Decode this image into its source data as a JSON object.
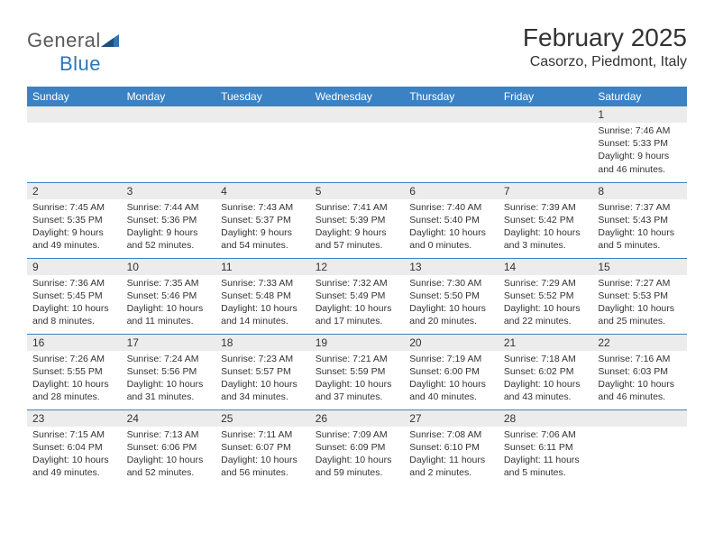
{
  "logo": {
    "part1": "General",
    "part2": "Blue"
  },
  "title": "February 2025",
  "location": "Casorzo, Piedmont, Italy",
  "colors": {
    "header_bg": "#3b82c4",
    "header_text": "#ffffff",
    "daynum_bg": "#ececec",
    "border": "#3b82c4",
    "text": "#333333",
    "logo_gray": "#5a5a5a",
    "logo_blue": "#2e75b6"
  },
  "day_headers": [
    "Sunday",
    "Monday",
    "Tuesday",
    "Wednesday",
    "Thursday",
    "Friday",
    "Saturday"
  ],
  "weeks": [
    [
      {
        "num": "",
        "sunrise": "",
        "sunset": "",
        "daylight": ""
      },
      {
        "num": "",
        "sunrise": "",
        "sunset": "",
        "daylight": ""
      },
      {
        "num": "",
        "sunrise": "",
        "sunset": "",
        "daylight": ""
      },
      {
        "num": "",
        "sunrise": "",
        "sunset": "",
        "daylight": ""
      },
      {
        "num": "",
        "sunrise": "",
        "sunset": "",
        "daylight": ""
      },
      {
        "num": "",
        "sunrise": "",
        "sunset": "",
        "daylight": ""
      },
      {
        "num": "1",
        "sunrise": "Sunrise: 7:46 AM",
        "sunset": "Sunset: 5:33 PM",
        "daylight": "Daylight: 9 hours and 46 minutes."
      }
    ],
    [
      {
        "num": "2",
        "sunrise": "Sunrise: 7:45 AM",
        "sunset": "Sunset: 5:35 PM",
        "daylight": "Daylight: 9 hours and 49 minutes."
      },
      {
        "num": "3",
        "sunrise": "Sunrise: 7:44 AM",
        "sunset": "Sunset: 5:36 PM",
        "daylight": "Daylight: 9 hours and 52 minutes."
      },
      {
        "num": "4",
        "sunrise": "Sunrise: 7:43 AM",
        "sunset": "Sunset: 5:37 PM",
        "daylight": "Daylight: 9 hours and 54 minutes."
      },
      {
        "num": "5",
        "sunrise": "Sunrise: 7:41 AM",
        "sunset": "Sunset: 5:39 PM",
        "daylight": "Daylight: 9 hours and 57 minutes."
      },
      {
        "num": "6",
        "sunrise": "Sunrise: 7:40 AM",
        "sunset": "Sunset: 5:40 PM",
        "daylight": "Daylight: 10 hours and 0 minutes."
      },
      {
        "num": "7",
        "sunrise": "Sunrise: 7:39 AM",
        "sunset": "Sunset: 5:42 PM",
        "daylight": "Daylight: 10 hours and 3 minutes."
      },
      {
        "num": "8",
        "sunrise": "Sunrise: 7:37 AM",
        "sunset": "Sunset: 5:43 PM",
        "daylight": "Daylight: 10 hours and 5 minutes."
      }
    ],
    [
      {
        "num": "9",
        "sunrise": "Sunrise: 7:36 AM",
        "sunset": "Sunset: 5:45 PM",
        "daylight": "Daylight: 10 hours and 8 minutes."
      },
      {
        "num": "10",
        "sunrise": "Sunrise: 7:35 AM",
        "sunset": "Sunset: 5:46 PM",
        "daylight": "Daylight: 10 hours and 11 minutes."
      },
      {
        "num": "11",
        "sunrise": "Sunrise: 7:33 AM",
        "sunset": "Sunset: 5:48 PM",
        "daylight": "Daylight: 10 hours and 14 minutes."
      },
      {
        "num": "12",
        "sunrise": "Sunrise: 7:32 AM",
        "sunset": "Sunset: 5:49 PM",
        "daylight": "Daylight: 10 hours and 17 minutes."
      },
      {
        "num": "13",
        "sunrise": "Sunrise: 7:30 AM",
        "sunset": "Sunset: 5:50 PM",
        "daylight": "Daylight: 10 hours and 20 minutes."
      },
      {
        "num": "14",
        "sunrise": "Sunrise: 7:29 AM",
        "sunset": "Sunset: 5:52 PM",
        "daylight": "Daylight: 10 hours and 22 minutes."
      },
      {
        "num": "15",
        "sunrise": "Sunrise: 7:27 AM",
        "sunset": "Sunset: 5:53 PM",
        "daylight": "Daylight: 10 hours and 25 minutes."
      }
    ],
    [
      {
        "num": "16",
        "sunrise": "Sunrise: 7:26 AM",
        "sunset": "Sunset: 5:55 PM",
        "daylight": "Daylight: 10 hours and 28 minutes."
      },
      {
        "num": "17",
        "sunrise": "Sunrise: 7:24 AM",
        "sunset": "Sunset: 5:56 PM",
        "daylight": "Daylight: 10 hours and 31 minutes."
      },
      {
        "num": "18",
        "sunrise": "Sunrise: 7:23 AM",
        "sunset": "Sunset: 5:57 PM",
        "daylight": "Daylight: 10 hours and 34 minutes."
      },
      {
        "num": "19",
        "sunrise": "Sunrise: 7:21 AM",
        "sunset": "Sunset: 5:59 PM",
        "daylight": "Daylight: 10 hours and 37 minutes."
      },
      {
        "num": "20",
        "sunrise": "Sunrise: 7:19 AM",
        "sunset": "Sunset: 6:00 PM",
        "daylight": "Daylight: 10 hours and 40 minutes."
      },
      {
        "num": "21",
        "sunrise": "Sunrise: 7:18 AM",
        "sunset": "Sunset: 6:02 PM",
        "daylight": "Daylight: 10 hours and 43 minutes."
      },
      {
        "num": "22",
        "sunrise": "Sunrise: 7:16 AM",
        "sunset": "Sunset: 6:03 PM",
        "daylight": "Daylight: 10 hours and 46 minutes."
      }
    ],
    [
      {
        "num": "23",
        "sunrise": "Sunrise: 7:15 AM",
        "sunset": "Sunset: 6:04 PM",
        "daylight": "Daylight: 10 hours and 49 minutes."
      },
      {
        "num": "24",
        "sunrise": "Sunrise: 7:13 AM",
        "sunset": "Sunset: 6:06 PM",
        "daylight": "Daylight: 10 hours and 52 minutes."
      },
      {
        "num": "25",
        "sunrise": "Sunrise: 7:11 AM",
        "sunset": "Sunset: 6:07 PM",
        "daylight": "Daylight: 10 hours and 56 minutes."
      },
      {
        "num": "26",
        "sunrise": "Sunrise: 7:09 AM",
        "sunset": "Sunset: 6:09 PM",
        "daylight": "Daylight: 10 hours and 59 minutes."
      },
      {
        "num": "27",
        "sunrise": "Sunrise: 7:08 AM",
        "sunset": "Sunset: 6:10 PM",
        "daylight": "Daylight: 11 hours and 2 minutes."
      },
      {
        "num": "28",
        "sunrise": "Sunrise: 7:06 AM",
        "sunset": "Sunset: 6:11 PM",
        "daylight": "Daylight: 11 hours and 5 minutes."
      },
      {
        "num": "",
        "sunrise": "",
        "sunset": "",
        "daylight": ""
      }
    ]
  ]
}
